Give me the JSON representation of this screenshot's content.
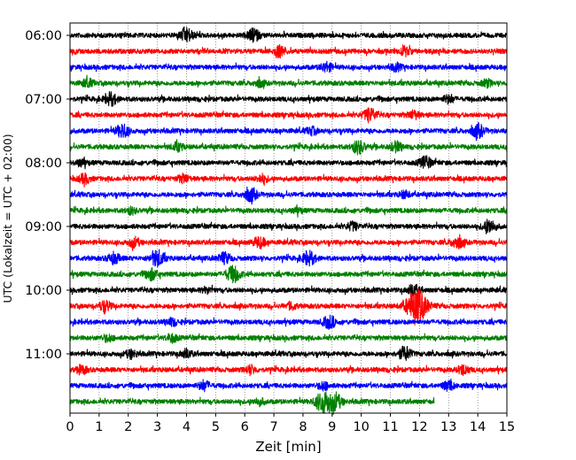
{
  "chart_data": {
    "type": "line",
    "title": "",
    "xlabel": "Zeit  [min]",
    "ylabel": "UTC (Lokalzeit = UTC + 02:00)",
    "xlim": [
      0,
      15
    ],
    "x_ticks": [
      "0",
      "1",
      "2",
      "3",
      "4",
      "5",
      "6",
      "7",
      "8",
      "9",
      "10",
      "11",
      "12",
      "13",
      "14",
      "15"
    ],
    "y_ticks": [
      "06:00",
      "07:00",
      "08:00",
      "09:00",
      "10:00",
      "11:00"
    ],
    "grid": "vertical dotted at each minute",
    "trace_interval_min": 15,
    "series_colors": [
      "#000000",
      "#ff0000",
      "#0000ff",
      "#008000"
    ],
    "traces": [
      {
        "start": "06:00",
        "end_min": 15,
        "events": [
          [
            4,
            1.0
          ],
          [
            6.3,
            0.9
          ]
        ]
      },
      {
        "start": "06:15",
        "end_min": 15,
        "events": [
          [
            7.2,
            0.8
          ],
          [
            11.5,
            0.6
          ]
        ]
      },
      {
        "start": "06:30",
        "end_min": 15,
        "events": [
          [
            8.8,
            0.7
          ],
          [
            11.2,
            0.5
          ]
        ]
      },
      {
        "start": "06:45",
        "end_min": 15,
        "events": [
          [
            0.6,
            0.6
          ],
          [
            6.5,
            0.5
          ],
          [
            14.3,
            0.5
          ]
        ]
      },
      {
        "start": "07:00",
        "end_min": 15,
        "events": [
          [
            1.4,
            0.9
          ],
          [
            13.0,
            0.6
          ]
        ]
      },
      {
        "start": "07:15",
        "end_min": 15,
        "events": [
          [
            10.3,
            1.0
          ],
          [
            11.8,
            0.6
          ]
        ]
      },
      {
        "start": "07:30",
        "end_min": 15,
        "events": [
          [
            1.8,
            1.0
          ],
          [
            14.0,
            1.0
          ],
          [
            8.3,
            0.5
          ]
        ]
      },
      {
        "start": "07:45",
        "end_min": 15,
        "events": [
          [
            3.7,
            0.6
          ],
          [
            9.9,
            1.0
          ],
          [
            11.2,
            0.7
          ]
        ]
      },
      {
        "start": "08:00",
        "end_min": 15,
        "events": [
          [
            12.2,
            0.9
          ],
          [
            0.4,
            0.5
          ]
        ]
      },
      {
        "start": "08:15",
        "end_min": 15,
        "events": [
          [
            0.5,
            0.7
          ],
          [
            3.9,
            0.6
          ],
          [
            6.6,
            0.6
          ]
        ]
      },
      {
        "start": "08:30",
        "end_min": 15,
        "events": [
          [
            6.2,
            1.0
          ],
          [
            11.5,
            0.5
          ]
        ]
      },
      {
        "start": "08:45",
        "end_min": 15,
        "events": [
          [
            2.1,
            0.5
          ],
          [
            7.8,
            0.4
          ]
        ]
      },
      {
        "start": "09:00",
        "end_min": 15,
        "events": [
          [
            14.4,
            1.0
          ],
          [
            9.7,
            0.6
          ]
        ]
      },
      {
        "start": "09:15",
        "end_min": 15,
        "events": [
          [
            2.2,
            0.7
          ],
          [
            6.5,
            0.8
          ],
          [
            13.3,
            0.9
          ]
        ]
      },
      {
        "start": "09:30",
        "end_min": 15,
        "events": [
          [
            3.0,
            1.2
          ],
          [
            8.2,
            1.0
          ],
          [
            1.5,
            0.8
          ],
          [
            5.3,
            0.8
          ]
        ]
      },
      {
        "start": "09:45",
        "end_min": 15,
        "events": [
          [
            5.6,
            1.2
          ],
          [
            2.8,
            0.8
          ]
        ]
      },
      {
        "start": "10:00",
        "end_min": 15,
        "events": [
          [
            11.8,
            0.8
          ],
          [
            4.7,
            0.4
          ]
        ]
      },
      {
        "start": "10:15",
        "end_min": 15,
        "events": [
          [
            11.9,
            2.6
          ],
          [
            1.2,
            0.8
          ],
          [
            7.6,
            0.5
          ]
        ]
      },
      {
        "start": "10:30",
        "end_min": 15,
        "events": [
          [
            8.9,
            0.9
          ],
          [
            3.5,
            0.5
          ]
        ]
      },
      {
        "start": "10:45",
        "end_min": 15,
        "events": [
          [
            3.5,
            0.6
          ],
          [
            1.3,
            0.5
          ]
        ]
      },
      {
        "start": "11:00",
        "end_min": 15,
        "events": [
          [
            11.5,
            1.0
          ],
          [
            4.0,
            0.6
          ],
          [
            2.1,
            0.6
          ]
        ]
      },
      {
        "start": "11:15",
        "end_min": 15,
        "events": [
          [
            0.4,
            0.6
          ],
          [
            13.5,
            0.7
          ],
          [
            6.2,
            0.6
          ]
        ]
      },
      {
        "start": "11:30",
        "end_min": 15,
        "events": [
          [
            4.6,
            0.7
          ],
          [
            13.0,
            0.7
          ],
          [
            8.7,
            0.6
          ]
        ]
      },
      {
        "start": "11:45",
        "end_min": 12.5,
        "events": [
          [
            8.7,
            1.6
          ],
          [
            9.1,
            1.2
          ],
          [
            6.5,
            0.5
          ]
        ]
      }
    ]
  }
}
